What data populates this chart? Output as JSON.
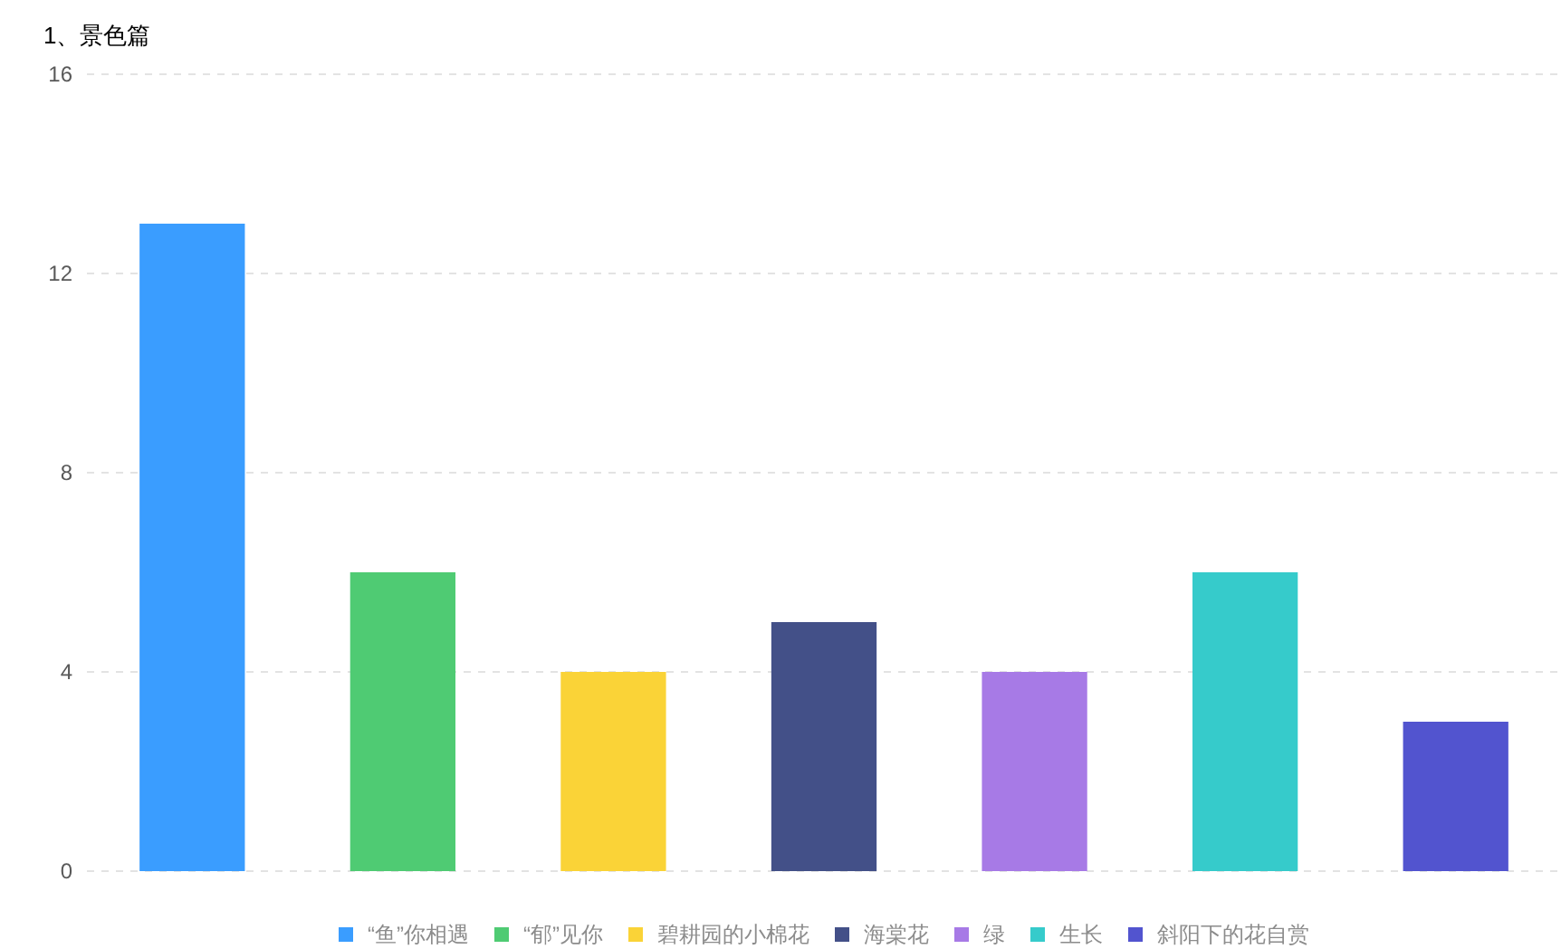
{
  "chart_data": {
    "type": "bar",
    "title": "1、景色篇",
    "categories": [
      null,
      null,
      null,
      null,
      null,
      null,
      null
    ],
    "series": [
      {
        "name": "“鱼”你相遇",
        "color": "#3a9dff",
        "values": [
          13,
          null,
          null,
          null,
          null,
          null,
          null
        ]
      },
      {
        "name": "“郁”见你",
        "color": "#4fcb73",
        "values": [
          null,
          6,
          null,
          null,
          null,
          null,
          null
        ]
      },
      {
        "name": "碧耕园的小棉花",
        "color": "#fad337",
        "values": [
          null,
          null,
          4,
          null,
          null,
          null,
          null
        ]
      },
      {
        "name": "海棠花",
        "color": "#435088",
        "values": [
          null,
          null,
          null,
          5,
          null,
          null,
          null
        ]
      },
      {
        "name": "绿",
        "color": "#a77ae6",
        "values": [
          null,
          null,
          null,
          null,
          4,
          null,
          null
        ]
      },
      {
        "name": "生长",
        "color": "#36cbcb",
        "values": [
          null,
          null,
          null,
          null,
          null,
          6,
          null
        ]
      },
      {
        "name": "斜阳下的花自赏",
        "color": "#5254cf",
        "values": [
          null,
          null,
          null,
          null,
          null,
          null,
          3
        ]
      }
    ],
    "ylim": [
      0,
      16
    ],
    "yticks": [
      0,
      4,
      8,
      12,
      16
    ],
    "grid": "y",
    "legend": "bottom"
  }
}
